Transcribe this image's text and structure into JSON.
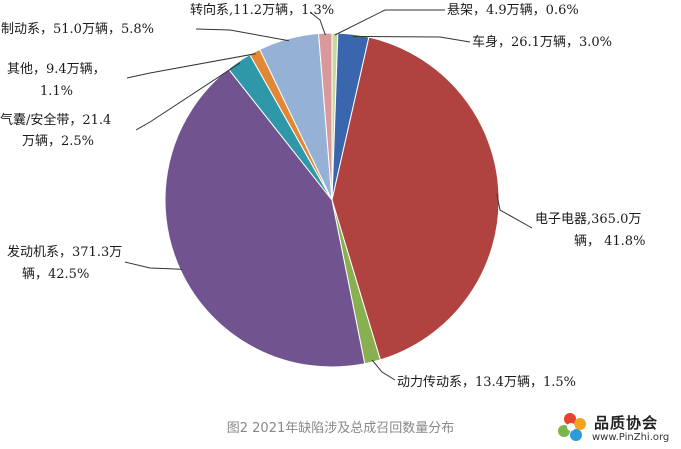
{
  "chart_data": {
    "type": "pie",
    "unit": "万辆",
    "slices": [
      {
        "name": "悬架",
        "value": 4.9,
        "percent": 0.6,
        "color": "#c8d8a0",
        "label_lines": [
          "悬架，4.9万辆，0.6%"
        ]
      },
      {
        "name": "车身",
        "value": 26.1,
        "percent": 3.0,
        "color": "#3a66ad",
        "label_lines": [
          "车身，26.1万辆，3.0%"
        ]
      },
      {
        "name": "电子电器",
        "value": 365.0,
        "percent": 41.8,
        "color": "#b04340",
        "label_lines": [
          "电子电器,365.0万",
          "辆， 41.8%"
        ]
      },
      {
        "name": "动力传动系",
        "value": 13.4,
        "percent": 1.5,
        "color": "#88b050",
        "label_lines": [
          "动力传动系，13.4万辆，1.5%"
        ]
      },
      {
        "name": "发动机系",
        "value": 371.3,
        "percent": 42.5,
        "color": "#71548f",
        "label_lines": [
          "发动机系，371.3万",
          "辆，42.5%"
        ]
      },
      {
        "name": "气囊/安全带",
        "value": 21.4,
        "percent": 2.5,
        "color": "#2e97a8",
        "label_lines": [
          "气囊/安全带，21.4",
          "万辆，2.5%"
        ]
      },
      {
        "name": "其他",
        "value": 9.4,
        "percent": 1.1,
        "color": "#e08838",
        "label_lines": [
          "其他，9.4万辆，",
          "1.1%"
        ]
      },
      {
        "name": "制动系",
        "value": 51.0,
        "percent": 5.8,
        "color": "#95b1d6",
        "label_lines": [
          "制动系，51.0万辆，5.8%"
        ]
      },
      {
        "name": "转向系",
        "value": 11.2,
        "percent": 1.3,
        "color": "#d9999a",
        "label_lines": [
          "转向系,11.2万辆，1.3%"
        ]
      }
    ],
    "caption": "图2 2021年缺陷涉及总成召回数量分布",
    "legend": "none",
    "grid": false
  },
  "watermark": {
    "name": "品质协会",
    "url": "www.PinZhi.org"
  }
}
